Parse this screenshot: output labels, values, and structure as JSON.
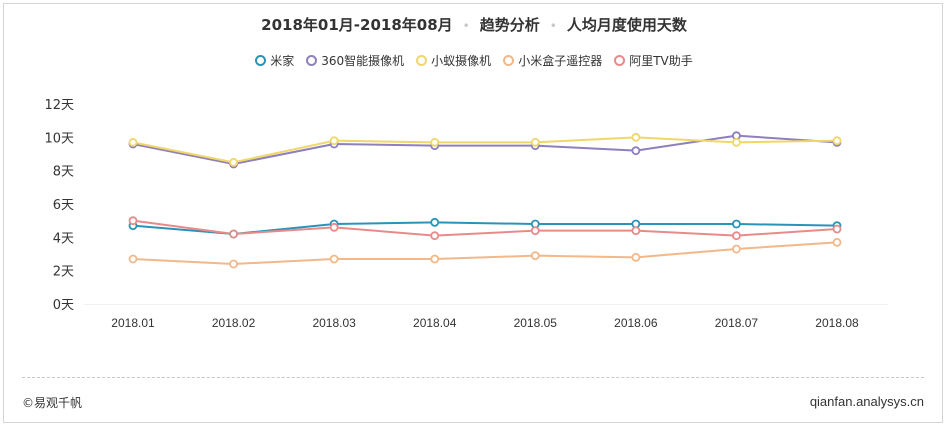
{
  "header": {
    "title_part1": "2018年01月-2018年08月",
    "title_part2": "趋势分析",
    "title_part3": "人均月度使用天数",
    "separator": "•"
  },
  "footer": {
    "left": "©易观千帆",
    "right": "qianfan.analysys.cn"
  },
  "chart_data": {
    "type": "line",
    "title": "2018年01月-2018年08月 • 趋势分析 • 人均月度使用天数",
    "xlabel": "",
    "ylabel": "",
    "categories": [
      "2018.01",
      "2018.02",
      "2018.03",
      "2018.04",
      "2018.05",
      "2018.06",
      "2018.07",
      "2018.08"
    ],
    "y_ticks": [
      "0天",
      "2天",
      "4天",
      "6天",
      "8天",
      "10天",
      "12天"
    ],
    "ylim": [
      0,
      12
    ],
    "legend_position": "top",
    "grid": false,
    "series": [
      {
        "name": "米家",
        "color": "#2a93b8",
        "values": [
          4.7,
          4.2,
          4.8,
          4.9,
          4.8,
          4.8,
          4.8,
          4.7
        ]
      },
      {
        "name": "360智能摄像机",
        "color": "#8e7fbd",
        "values": [
          9.6,
          8.4,
          9.6,
          9.5,
          9.5,
          9.2,
          10.1,
          9.7
        ]
      },
      {
        "name": "小蚁摄像机",
        "color": "#f0d76a",
        "values": [
          9.7,
          8.5,
          9.8,
          9.7,
          9.7,
          10.0,
          9.7,
          9.8
        ]
      },
      {
        "name": "小米盒子遥控器",
        "color": "#f2b88a",
        "values": [
          2.7,
          2.4,
          2.7,
          2.7,
          2.9,
          2.8,
          3.3,
          3.7
        ]
      },
      {
        "name": "阿里TV助手",
        "color": "#e88a8a",
        "values": [
          5.0,
          4.2,
          4.6,
          4.1,
          4.4,
          4.4,
          4.1,
          4.5
        ]
      }
    ]
  }
}
